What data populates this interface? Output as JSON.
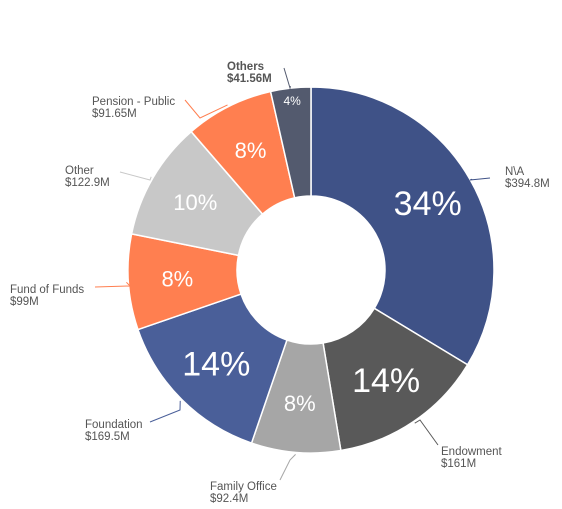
{
  "chart_data": {
    "type": "pie",
    "donut": true,
    "title": "",
    "series": [
      {
        "slices": [
          {
            "label": "N\\A",
            "value_text": "$394.8M",
            "value": 394.8,
            "percent_label": "34%",
            "color": "#3f5287",
            "percent_size": "large"
          },
          {
            "label": "Endowment",
            "value_text": "$161M",
            "value": 161.0,
            "percent_label": "14%",
            "color": "#595959",
            "percent_size": "large"
          },
          {
            "label": "Family Office",
            "value_text": "$92.4M",
            "value": 92.4,
            "percent_label": "8%",
            "color": "#a6a6a6",
            "percent_size": "medium"
          },
          {
            "label": "Foundation",
            "value_text": "$169.5M",
            "value": 169.5,
            "percent_label": "14%",
            "color": "#4a5f99",
            "percent_size": "large"
          },
          {
            "label": "Fund of Funds",
            "value_text": "$99M",
            "value": 99.0,
            "percent_label": "8%",
            "color": "#ff7f50",
            "percent_size": "medium"
          },
          {
            "label": "Other",
            "value_text": "$122.9M",
            "value": 122.9,
            "percent_label": "10%",
            "color": "#c8c8c8",
            "percent_size": "medium"
          },
          {
            "label": "Pension - Public",
            "value_text": "$91.65M",
            "value": 91.65,
            "percent_label": "8%",
            "color": "#ff7f50",
            "percent_size": "medium"
          },
          {
            "label": "Others",
            "value_text": "$41.56M",
            "value": 41.56,
            "percent_label": "4%",
            "color": "#535a6e",
            "percent_size": "small",
            "bold_label": true
          }
        ]
      }
    ],
    "legend": "none",
    "data_labels": "outside with leader lines"
  }
}
